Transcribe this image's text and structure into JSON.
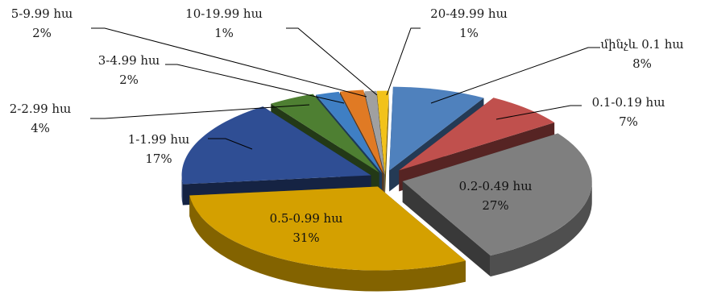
{
  "chart_data": {
    "type": "pie",
    "style": "3d-exploded",
    "legend": "none",
    "slices": [
      {
        "name": "մինչև 0.1 հա",
        "percent_label": "8%",
        "value": 8,
        "color": "#4f81bd"
      },
      {
        "name": "0.1-0.19 հա",
        "percent_label": "7%",
        "value": 7,
        "color": "#c0504d"
      },
      {
        "name": "0.2-0.49 հա",
        "percent_label": "27%",
        "value": 27,
        "color": "#7f7f7f"
      },
      {
        "name": "0.5-0.99 հա",
        "percent_label": "31%",
        "value": 31,
        "color": "#d4a000"
      },
      {
        "name": "1-1.99 հա",
        "percent_label": "17%",
        "value": 17,
        "color": "#2f4e94"
      },
      {
        "name": "2-2.99 հա",
        "percent_label": "4%",
        "value": 4,
        "color": "#4e7f32"
      },
      {
        "name": "3-4.99 հա",
        "percent_label": "2%",
        "value": 2,
        "color": "#3f7fc4"
      },
      {
        "name": "5-9.99 հա",
        "percent_label": "2%",
        "value": 2,
        "color": "#e07a24"
      },
      {
        "name": "10-19.99 հա",
        "percent_label": "1%",
        "value": 1,
        "color": "#a0a0a0"
      },
      {
        "name": "20-49.99 հա",
        "percent_label": "1%",
        "value": 1,
        "color": "#f2c21a"
      }
    ]
  }
}
